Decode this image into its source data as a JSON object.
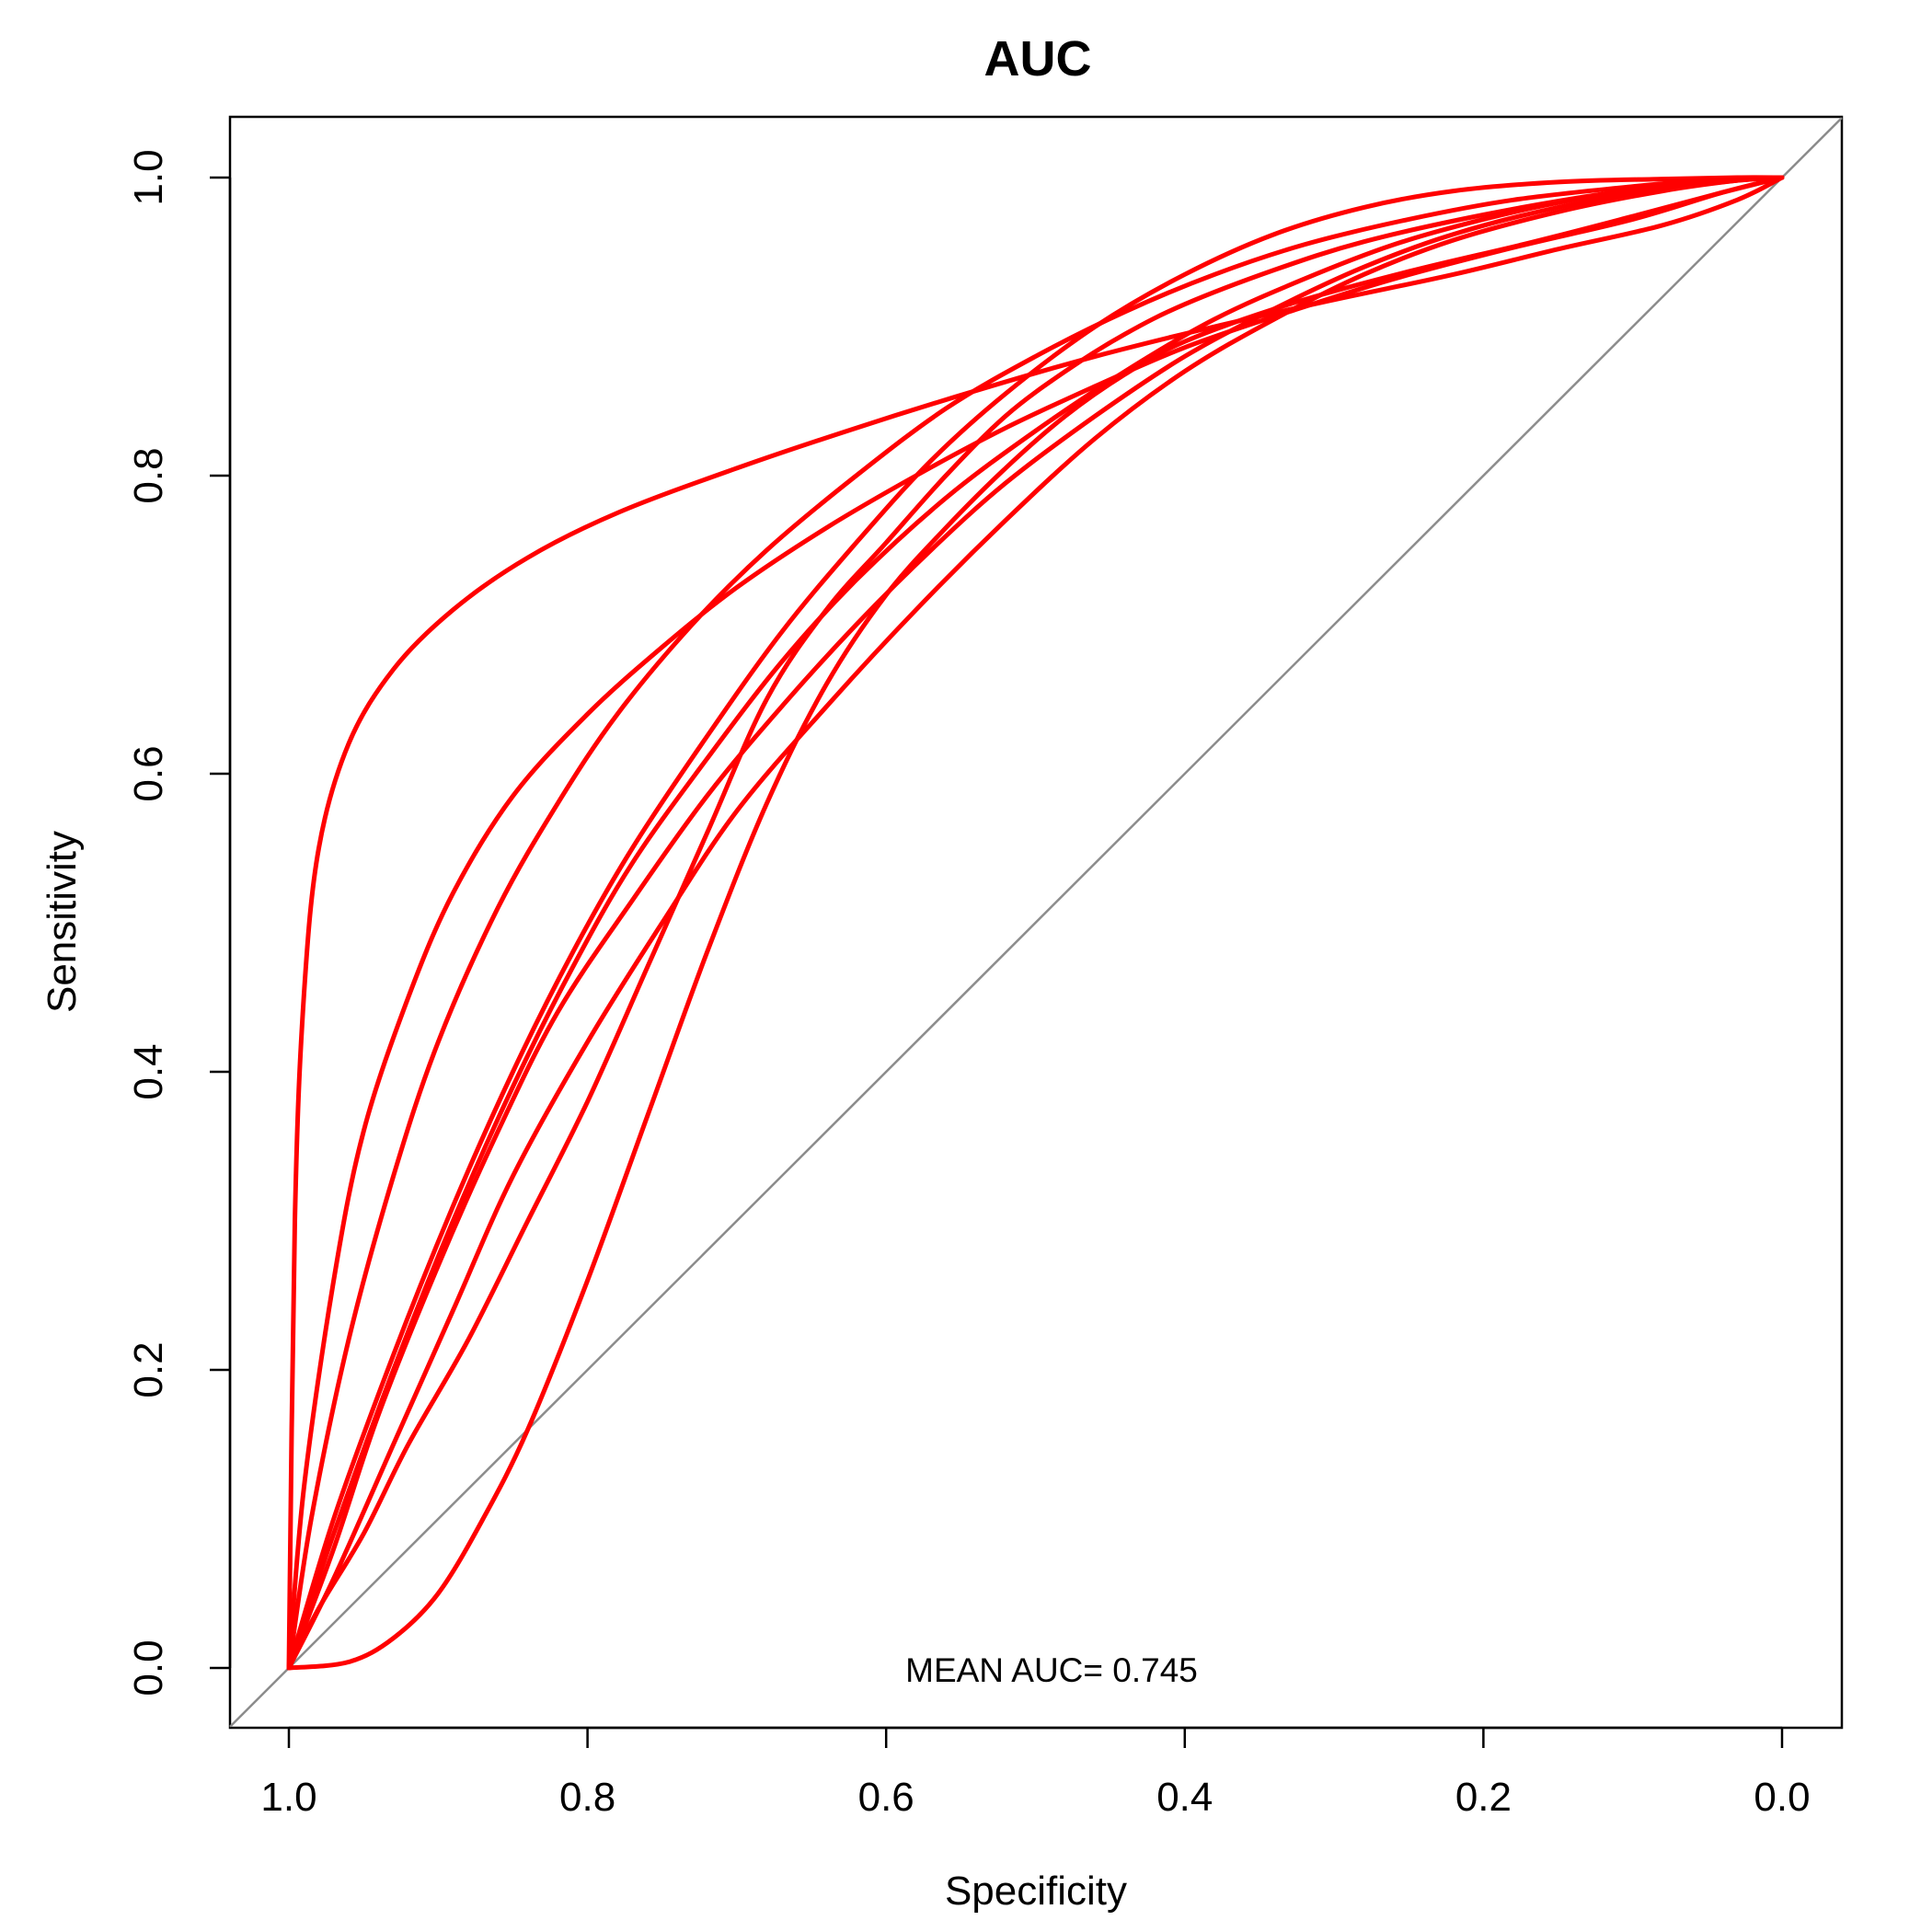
{
  "chart_data": {
    "type": "line",
    "title": "AUC",
    "xlabel": "Specificity",
    "ylabel": "Sensitivity",
    "xlim": [
      1.0,
      0.0
    ],
    "ylim": [
      0.0,
      1.0
    ],
    "x_reversed": true,
    "x_ticks": [
      "1.0",
      "0.8",
      "0.6",
      "0.4",
      "0.2",
      "0.0"
    ],
    "y_ticks": [
      "0.0",
      "0.2",
      "0.4",
      "0.6",
      "0.8",
      "1.0"
    ],
    "grid": false,
    "legend": "none",
    "annotation": "MEAN AUC= 0.745",
    "series_color": "#ff0000",
    "reference_color": "#8c8c8c",
    "reference_line": {
      "x": [
        1.0,
        0.0
      ],
      "y": [
        0.0,
        1.0
      ]
    },
    "series": [
      {
        "x": [
          1.0,
          0.996,
          0.99,
          0.98,
          0.96,
          0.93,
          0.89,
          0.84,
          0.78,
          0.7,
          0.62,
          0.54,
          0.46,
          0.38,
          0.3,
          0.22,
          0.15,
          0.08,
          0.03,
          0.0
        ],
        "y": [
          0.0,
          0.3,
          0.45,
          0.55,
          0.62,
          0.67,
          0.71,
          0.745,
          0.775,
          0.805,
          0.832,
          0.857,
          0.88,
          0.9,
          0.918,
          0.935,
          0.952,
          0.968,
          0.985,
          1.0
        ]
      },
      {
        "x": [
          1.0,
          0.99,
          0.97,
          0.95,
          0.92,
          0.89,
          0.85,
          0.8,
          0.75,
          0.7,
          0.64,
          0.58,
          0.52,
          0.46,
          0.4,
          0.33,
          0.26,
          0.18,
          0.1,
          0.04,
          0.0
        ],
        "y": [
          0.0,
          0.12,
          0.26,
          0.36,
          0.45,
          0.52,
          0.585,
          0.64,
          0.685,
          0.725,
          0.765,
          0.8,
          0.832,
          0.86,
          0.886,
          0.91,
          0.932,
          0.953,
          0.972,
          0.99,
          1.0
        ]
      },
      {
        "x": [
          1.0,
          0.985,
          0.96,
          0.93,
          0.9,
          0.86,
          0.82,
          0.78,
          0.73,
          0.68,
          0.62,
          0.56,
          0.5,
          0.44,
          0.38,
          0.32,
          0.25,
          0.18,
          0.1,
          0.04,
          0.0
        ],
        "y": [
          0.0,
          0.1,
          0.22,
          0.33,
          0.42,
          0.51,
          0.58,
          0.64,
          0.7,
          0.75,
          0.8,
          0.845,
          0.88,
          0.91,
          0.935,
          0.955,
          0.972,
          0.985,
          0.994,
          0.999,
          1.0
        ]
      },
      {
        "x": [
          1.0,
          0.97,
          0.93,
          0.89,
          0.85,
          0.81,
          0.77,
          0.72,
          0.67,
          0.62,
          0.57,
          0.52,
          0.46,
          0.4,
          0.34,
          0.28,
          0.22,
          0.15,
          0.08,
          0.03,
          0.0
        ],
        "y": [
          0.0,
          0.1,
          0.21,
          0.31,
          0.4,
          0.48,
          0.55,
          0.625,
          0.695,
          0.755,
          0.81,
          0.855,
          0.9,
          0.935,
          0.962,
          0.98,
          0.991,
          0.997,
          0.999,
          1.0,
          1.0
        ]
      },
      {
        "x": [
          1.0,
          0.97,
          0.93,
          0.89,
          0.85,
          0.81,
          0.77,
          0.72,
          0.67,
          0.62,
          0.56,
          0.5,
          0.44,
          0.38,
          0.32,
          0.26,
          0.2,
          0.14,
          0.08,
          0.03,
          0.0
        ],
        "y": [
          0.0,
          0.09,
          0.2,
          0.3,
          0.39,
          0.47,
          0.54,
          0.61,
          0.675,
          0.73,
          0.785,
          0.83,
          0.87,
          0.905,
          0.932,
          0.955,
          0.972,
          0.985,
          0.994,
          0.999,
          1.0
        ]
      },
      {
        "x": [
          1.0,
          0.97,
          0.94,
          0.9,
          0.86,
          0.82,
          0.77,
          0.72,
          0.67,
          0.62,
          0.57,
          0.52,
          0.46,
          0.4,
          0.34,
          0.28,
          0.22,
          0.15,
          0.08,
          0.03,
          0.0
        ],
        "y": [
          0.0,
          0.08,
          0.17,
          0.27,
          0.36,
          0.44,
          0.515,
          0.585,
          0.645,
          0.7,
          0.75,
          0.795,
          0.84,
          0.88,
          0.912,
          0.94,
          0.962,
          0.98,
          0.992,
          0.998,
          1.0
        ]
      },
      {
        "x": [
          1.0,
          0.97,
          0.93,
          0.89,
          0.85,
          0.8,
          0.75,
          0.7,
          0.64,
          0.58,
          0.52,
          0.46,
          0.4,
          0.34,
          0.28,
          0.22,
          0.15,
          0.08,
          0.03,
          0.0
        ],
        "y": [
          0.0,
          0.06,
          0.15,
          0.24,
          0.33,
          0.42,
          0.5,
          0.575,
          0.645,
          0.71,
          0.77,
          0.825,
          0.87,
          0.905,
          0.935,
          0.958,
          0.977,
          0.991,
          0.998,
          1.0
        ]
      },
      {
        "x": [
          1.0,
          0.98,
          0.95,
          0.92,
          0.88,
          0.84,
          0.8,
          0.76,
          0.72,
          0.68,
          0.64,
          0.6,
          0.56,
          0.52,
          0.48,
          0.44,
          0.4,
          0.34,
          0.28,
          0.2,
          0.12,
          0.05,
          0.0
        ],
        "y": [
          0.0,
          0.04,
          0.09,
          0.15,
          0.22,
          0.3,
          0.38,
          0.47,
          0.56,
          0.65,
          0.71,
          0.755,
          0.8,
          0.84,
          0.87,
          0.895,
          0.915,
          0.938,
          0.957,
          0.975,
          0.989,
          0.997,
          1.0
        ]
      },
      {
        "x": [
          1.0,
          0.96,
          0.93,
          0.9,
          0.87,
          0.84,
          0.8,
          0.76,
          0.72,
          0.68,
          0.64,
          0.6,
          0.56,
          0.52,
          0.48,
          0.44,
          0.4,
          0.33,
          0.25,
          0.17,
          0.1,
          0.04,
          0.0
        ],
        "y": [
          0.0,
          0.004,
          0.02,
          0.05,
          0.1,
          0.16,
          0.26,
          0.37,
          0.48,
          0.58,
          0.66,
          0.72,
          0.765,
          0.805,
          0.84,
          0.868,
          0.89,
          0.915,
          0.937,
          0.956,
          0.974,
          0.99,
          1.0
        ]
      }
    ]
  }
}
